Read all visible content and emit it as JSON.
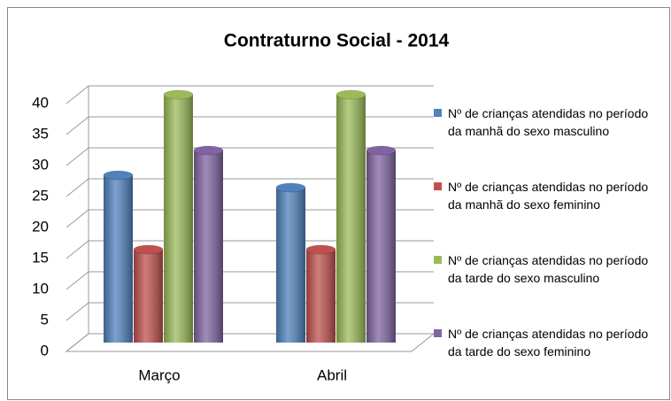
{
  "chart_data": {
    "type": "bar3d",
    "title": "Contraturno Social - 2014",
    "categories": [
      "Março",
      "Abril"
    ],
    "series": [
      {
        "name": "Nº de crianças atendidas no período da manhã do sexo masculino",
        "color": "#4f81bd",
        "values": [
          27,
          25
        ]
      },
      {
        "name": "Nº de crianças atendidas no período da manhã do sexo feminino",
        "color": "#c0504d",
        "values": [
          15,
          15
        ]
      },
      {
        "name": "Nº de crianças atendidas no período da tarde do sexo masculino",
        "color": "#9bbb59",
        "values": [
          40,
          40
        ]
      },
      {
        "name": "Nº de crianças atendidas no período da tarde do sexo feminino",
        "color": "#8064a2",
        "values": [
          31,
          31
        ]
      }
    ],
    "ylim": [
      0,
      40
    ],
    "yticks": [
      0,
      5,
      10,
      15,
      20,
      25,
      30,
      35,
      40
    ],
    "grid": true,
    "legend": "right"
  }
}
